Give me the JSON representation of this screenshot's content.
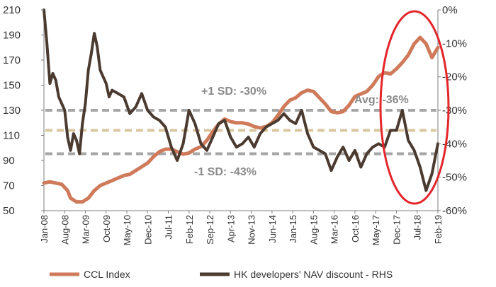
{
  "chart_data": {
    "type": "line",
    "title": "",
    "x_tick_labels": [
      "Jan-08",
      "Aug-08",
      "Mar-09",
      "Oct-09",
      "May-10",
      "Dec-10",
      "Jul-11",
      "Feb-12",
      "Sep-12",
      "Apr-13",
      "Nov-13",
      "Jun-14",
      "Jan-15",
      "Aug-15",
      "Mar-16",
      "Oct-16",
      "May-17",
      "Dec-17",
      "Jul-18",
      "Feb-19"
    ],
    "x_range": [
      "2008-01",
      "2019-02"
    ],
    "left_axis": {
      "ticks": [
        210,
        190,
        170,
        150,
        130,
        110,
        90,
        70,
        50
      ],
      "ylim": [
        50,
        210
      ]
    },
    "right_axis": {
      "ticks": [
        "0%",
        "-10%",
        "-20%",
        "-30%",
        "-40%",
        "-50%",
        "-60%"
      ],
      "ylim": [
        -60,
        0
      ]
    },
    "series": [
      {
        "name": "CCL Index",
        "axis": "left",
        "color": "#cf7a5a",
        "points": [
          [
            "2008-01",
            72
          ],
          [
            "2008-03",
            73
          ],
          [
            "2008-05",
            72
          ],
          [
            "2008-07",
            71
          ],
          [
            "2008-09",
            66
          ],
          [
            "2008-10",
            60
          ],
          [
            "2008-12",
            57
          ],
          [
            "2009-02",
            57
          ],
          [
            "2009-04",
            60
          ],
          [
            "2009-06",
            66
          ],
          [
            "2009-08",
            70
          ],
          [
            "2009-10",
            72
          ],
          [
            "2009-12",
            74
          ],
          [
            "2010-02",
            76
          ],
          [
            "2010-04",
            78
          ],
          [
            "2010-06",
            79
          ],
          [
            "2010-08",
            82
          ],
          [
            "2010-10",
            85
          ],
          [
            "2010-12",
            88
          ],
          [
            "2011-02",
            93
          ],
          [
            "2011-04",
            97
          ],
          [
            "2011-06",
            99
          ],
          [
            "2011-08",
            99
          ],
          [
            "2011-10",
            97
          ],
          [
            "2011-12",
            95
          ],
          [
            "2012-02",
            96
          ],
          [
            "2012-04",
            99
          ],
          [
            "2012-06",
            101
          ],
          [
            "2012-08",
            106
          ],
          [
            "2012-10",
            113
          ],
          [
            "2012-12",
            119
          ],
          [
            "2013-02",
            123
          ],
          [
            "2013-04",
            121
          ],
          [
            "2013-06",
            120
          ],
          [
            "2013-08",
            120
          ],
          [
            "2013-10",
            119
          ],
          [
            "2013-12",
            117
          ],
          [
            "2014-02",
            116
          ],
          [
            "2014-04",
            117
          ],
          [
            "2014-06",
            120
          ],
          [
            "2014-08",
            126
          ],
          [
            "2014-10",
            133
          ],
          [
            "2014-12",
            138
          ],
          [
            "2015-02",
            140
          ],
          [
            "2015-04",
            144
          ],
          [
            "2015-06",
            146
          ],
          [
            "2015-08",
            145
          ],
          [
            "2015-10",
            140
          ],
          [
            "2015-12",
            135
          ],
          [
            "2016-02",
            129
          ],
          [
            "2016-04",
            128
          ],
          [
            "2016-06",
            129
          ],
          [
            "2016-08",
            134
          ],
          [
            "2016-10",
            141
          ],
          [
            "2016-12",
            143
          ],
          [
            "2017-02",
            145
          ],
          [
            "2017-04",
            150
          ],
          [
            "2017-06",
            157
          ],
          [
            "2017-08",
            160
          ],
          [
            "2017-10",
            159
          ],
          [
            "2017-12",
            163
          ],
          [
            "2018-02",
            168
          ],
          [
            "2018-04",
            174
          ],
          [
            "2018-06",
            183
          ],
          [
            "2018-08",
            188
          ],
          [
            "2018-10",
            183
          ],
          [
            "2018-12",
            172
          ],
          [
            "2019-02",
            180
          ]
        ]
      },
      {
        "name": "HK developers' NAV discount - RHS",
        "axis": "right",
        "color": "#4a3a30",
        "points": [
          [
            "2008-01",
            0
          ],
          [
            "2008-02",
            -10
          ],
          [
            "2008-03",
            -22
          ],
          [
            "2008-04",
            -19
          ],
          [
            "2008-05",
            -21
          ],
          [
            "2008-06",
            -26
          ],
          [
            "2008-07",
            -28
          ],
          [
            "2008-08",
            -30
          ],
          [
            "2008-09",
            -38
          ],
          [
            "2008-10",
            -42
          ],
          [
            "2008-11",
            -37
          ],
          [
            "2008-12",
            -39
          ],
          [
            "2009-01",
            -43
          ],
          [
            "2009-02",
            -34
          ],
          [
            "2009-03",
            -28
          ],
          [
            "2009-04",
            -18
          ],
          [
            "2009-05",
            -13
          ],
          [
            "2009-06",
            -7
          ],
          [
            "2009-07",
            -11
          ],
          [
            "2009-08",
            -18
          ],
          [
            "2009-09",
            -20
          ],
          [
            "2009-10",
            -22
          ],
          [
            "2009-11",
            -26
          ],
          [
            "2009-12",
            -24
          ],
          [
            "2010-02",
            -25
          ],
          [
            "2010-04",
            -26
          ],
          [
            "2010-06",
            -31
          ],
          [
            "2010-08",
            -29
          ],
          [
            "2010-10",
            -25
          ],
          [
            "2010-12",
            -30
          ],
          [
            "2011-02",
            -32
          ],
          [
            "2011-04",
            -33
          ],
          [
            "2011-06",
            -35
          ],
          [
            "2011-08",
            -41
          ],
          [
            "2011-10",
            -45
          ],
          [
            "2011-12",
            -40
          ],
          [
            "2012-02",
            -30
          ],
          [
            "2012-04",
            -34
          ],
          [
            "2012-06",
            -40
          ],
          [
            "2012-08",
            -42
          ],
          [
            "2012-10",
            -38
          ],
          [
            "2012-12",
            -34
          ],
          [
            "2013-02",
            -33
          ],
          [
            "2013-04",
            -38
          ],
          [
            "2013-06",
            -41
          ],
          [
            "2013-08",
            -40
          ],
          [
            "2013-10",
            -38
          ],
          [
            "2013-12",
            -41
          ],
          [
            "2014-02",
            -37
          ],
          [
            "2014-04",
            -35
          ],
          [
            "2014-06",
            -34
          ],
          [
            "2014-08",
            -33
          ],
          [
            "2014-10",
            -31
          ],
          [
            "2014-12",
            -33
          ],
          [
            "2015-02",
            -34
          ],
          [
            "2015-04",
            -30
          ],
          [
            "2015-06",
            -37
          ],
          [
            "2015-08",
            -41
          ],
          [
            "2015-10",
            -42
          ],
          [
            "2015-12",
            -43
          ],
          [
            "2016-02",
            -48
          ],
          [
            "2016-04",
            -44
          ],
          [
            "2016-06",
            -41
          ],
          [
            "2016-08",
            -45
          ],
          [
            "2016-10",
            -42
          ],
          [
            "2016-12",
            -47
          ],
          [
            "2017-02",
            -43
          ],
          [
            "2017-04",
            -41
          ],
          [
            "2017-06",
            -40
          ],
          [
            "2017-08",
            -41
          ],
          [
            "2017-10",
            -36
          ],
          [
            "2017-12",
            -36
          ],
          [
            "2018-02",
            -30
          ],
          [
            "2018-04",
            -39
          ],
          [
            "2018-06",
            -42
          ],
          [
            "2018-08",
            -47
          ],
          [
            "2018-10",
            -54
          ],
          [
            "2018-12",
            -49
          ],
          [
            "2019-02",
            -40
          ]
        ]
      }
    ],
    "reference_lines": [
      {
        "label": "+1 SD: -30%",
        "value": -30,
        "axis": "right",
        "color": "#a6a6a6"
      },
      {
        "label": "Avg: -36%",
        "value": -36,
        "axis": "right",
        "color": "#d9c7a0"
      },
      {
        "label": "-1 SD: -43%",
        "value": -43,
        "axis": "right",
        "color": "#a6a6a6"
      }
    ],
    "highlight": {
      "shape": "ellipse",
      "color": "#e3262b",
      "around": "2018"
    },
    "grid": false,
    "legend": {
      "position": "bottom",
      "items": [
        "CCL Index",
        "HK developers' NAV discount - RHS"
      ]
    }
  }
}
